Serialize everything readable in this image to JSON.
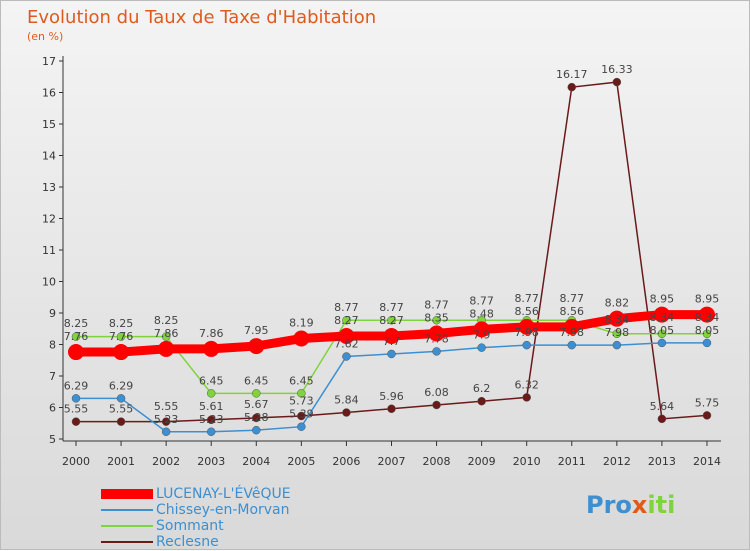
{
  "header": {
    "title": "Evolution du Taux de Taxe d'Habitation",
    "subtitle": "(en %)"
  },
  "logo": {
    "text": "Proxiti"
  },
  "chart_data": {
    "type": "line",
    "title": "Evolution du Taux de Taxe d'Habitation",
    "ylabel": "(en %)",
    "ylim": [
      5,
      17
    ],
    "yticks": [
      5,
      6,
      7,
      8,
      9,
      10,
      11,
      12,
      13,
      14,
      15,
      16,
      17
    ],
    "x": [
      2000,
      2001,
      2002,
      2003,
      2004,
      2005,
      2006,
      2007,
      2008,
      2009,
      2010,
      2011,
      2012,
      2013,
      2014
    ],
    "series": [
      {
        "name": "LUCENAY-L'ÉVêQUE",
        "color": "#ff0000",
        "values": [
          7.76,
          7.76,
          7.86,
          7.86,
          7.95,
          8.19,
          8.27,
          8.27,
          8.35,
          8.48,
          8.56,
          8.56,
          8.82,
          8.95,
          8.95
        ]
      },
      {
        "name": "Chissey-en-Morvan",
        "color": "#3c8fd0",
        "values": [
          6.29,
          6.29,
          5.23,
          5.23,
          5.28,
          5.39,
          7.62,
          7.7,
          7.78,
          7.9,
          7.98,
          7.98,
          7.98,
          8.05,
          8.05
        ]
      },
      {
        "name": "Sommant",
        "color": "#7fd43c",
        "values": [
          8.25,
          8.25,
          8.25,
          6.45,
          6.45,
          6.45,
          8.77,
          8.77,
          8.77,
          8.77,
          8.77,
          8.77,
          8.34,
          8.34,
          8.34
        ]
      },
      {
        "name": "Reclesne",
        "color": "#6b1a1a",
        "values": [
          5.55,
          5.55,
          5.55,
          5.61,
          5.67,
          5.73,
          5.84,
          5.96,
          6.08,
          6.2,
          6.32,
          16.17,
          16.33,
          5.64,
          5.75
        ]
      }
    ],
    "legend": "bottom-left",
    "grid": false
  }
}
